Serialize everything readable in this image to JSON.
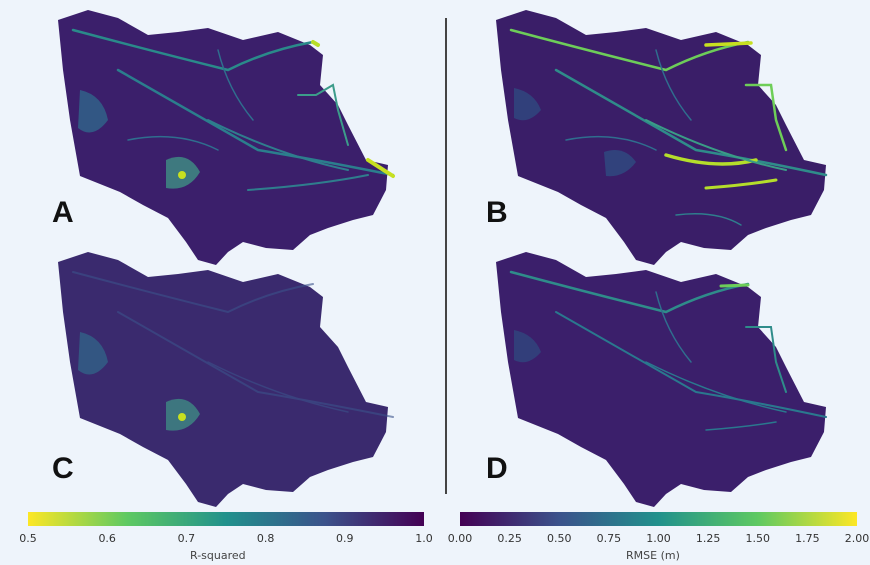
{
  "panels": [
    {
      "label": "A",
      "metric": "R-squared"
    },
    {
      "label": "B",
      "metric": "RMSE (m)"
    },
    {
      "label": "C",
      "metric": "R-squared"
    },
    {
      "label": "D",
      "metric": "RMSE (m)"
    }
  ],
  "colorbars": {
    "r_squared": {
      "title": "R-squared",
      "ticks": [
        "0.5",
        "0.6",
        "0.7",
        "0.8",
        "0.9",
        "1.0"
      ],
      "range": [
        0.5,
        1.0
      ],
      "colormap": "viridis-reversed"
    },
    "rmse": {
      "title": "RMSE (m)",
      "ticks": [
        "0.00",
        "0.25",
        "0.50",
        "0.75",
        "1.00",
        "1.25",
        "1.50",
        "1.75",
        "2.00"
      ],
      "range": [
        0.0,
        2.0
      ],
      "colormap": "viridis"
    }
  },
  "colors": {
    "background": "#eef4fb",
    "basin_fill": "#3b1f6b",
    "basin_fill_alt": "#3a2a6e",
    "divider": "#444444",
    "viridis_low": "#440154",
    "viridis_mid": "#21918c",
    "viridis_high": "#fde725"
  }
}
